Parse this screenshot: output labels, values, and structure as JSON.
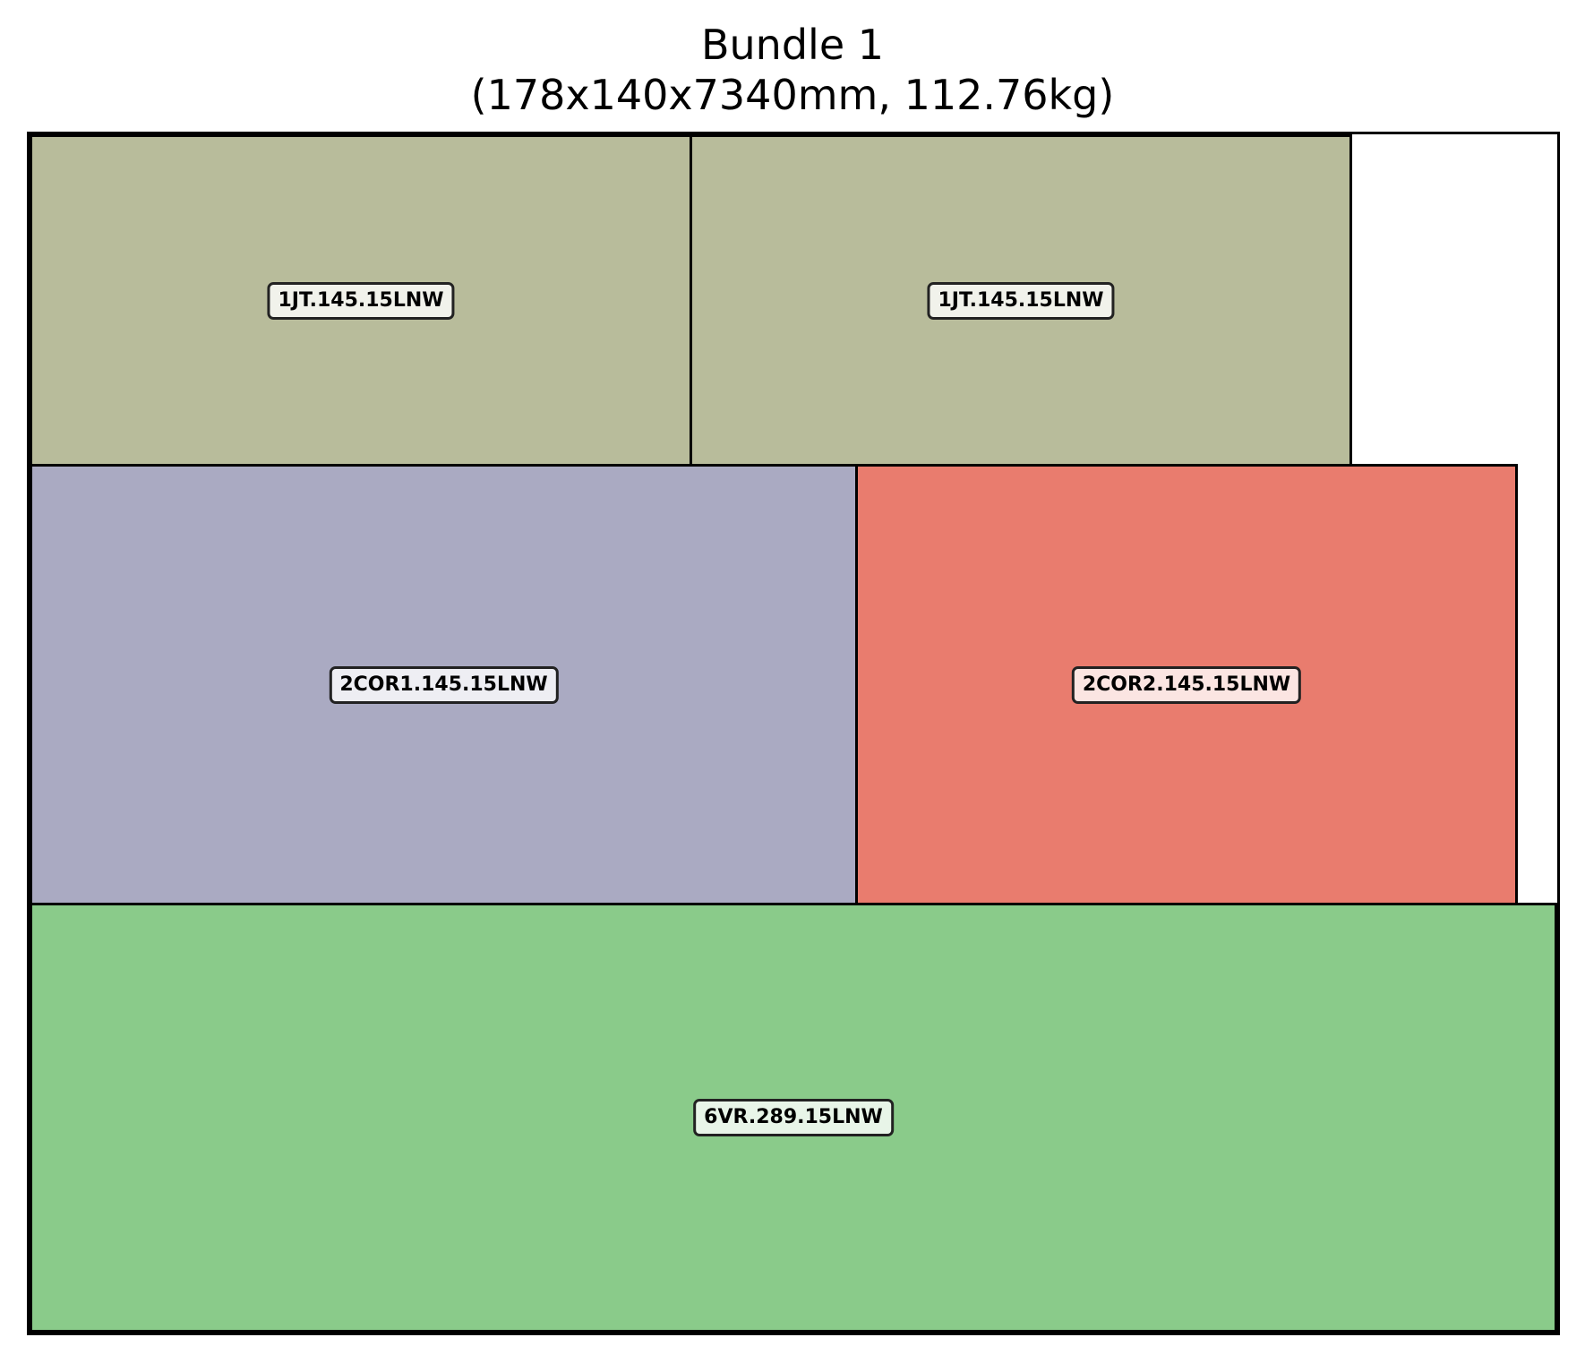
{
  "title": {
    "line1": "Bundle 1",
    "line2": "(178x140x7340mm, 112.76kg)"
  },
  "bundle": {
    "width_mm": 178,
    "height_mm": 140,
    "length_mm": 7340,
    "weight_kg": 112.76
  },
  "pieces": [
    {
      "label": "1JT.145.15LNW",
      "color": "#b8bc9b"
    },
    {
      "label": "1JT.145.15LNW",
      "color": "#b8bc9b"
    },
    {
      "label": "2COR1.145.15LNW",
      "color": "#aaaac2"
    },
    {
      "label": "2COR2.145.15LNW",
      "color": "#e97c6e"
    },
    {
      "label": "6VR.289.15LNW",
      "color": "#8acb8a"
    }
  ]
}
